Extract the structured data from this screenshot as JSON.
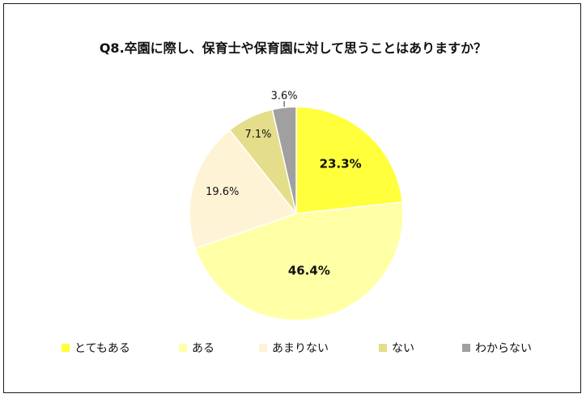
{
  "chart_data": {
    "type": "pie",
    "title": "Q8.卒園に際し、保育士や保育園に対して思うことはありますか？",
    "slices": [
      {
        "name": "とてもある",
        "value": 23.3,
        "label": "23.3%",
        "color": "#ffff3c",
        "label_bold": true
      },
      {
        "name": "ある",
        "value": 46.4,
        "label": "46.4%",
        "color": "#ffffa6",
        "label_bold": true
      },
      {
        "name": "あまりない",
        "value": 19.6,
        "label": "19.6%",
        "color": "#fff3d6",
        "label_bold": false
      },
      {
        "name": "ない",
        "value": 7.1,
        "label": "7.1%",
        "color": "#e4dd8a",
        "label_bold": false
      },
      {
        "name": "わからない",
        "value": 3.6,
        "label": "3.6%",
        "color": "#a0a0a0",
        "label_bold": false
      }
    ],
    "start": "top",
    "direction": "clockwise",
    "legend": "bottom"
  }
}
